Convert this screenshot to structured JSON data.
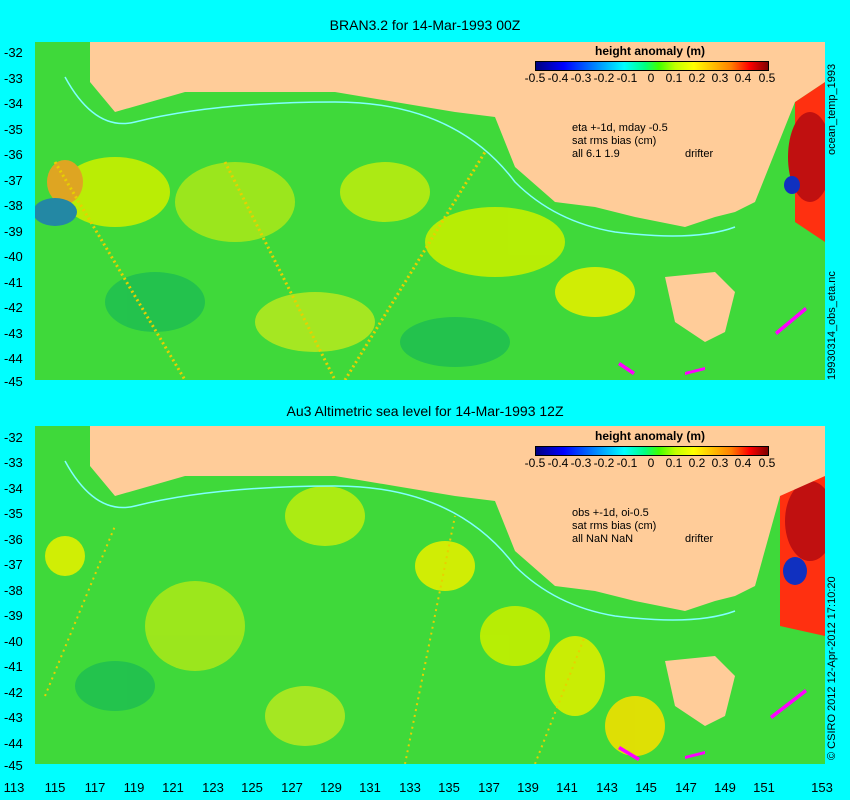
{
  "panels": [
    {
      "title": "BRAN3.2 for 14-Mar-1993 00Z",
      "colorbar_title": "height anomaly (m)",
      "note_lines": [
        "eta +-1d, mday -0.5",
        "sat rms bias (cm)",
        "all 6.1 1.9"
      ],
      "drifter_label": "drifter",
      "side_label": "ocean_temp_1993",
      "side_label_lower": "19930314_obs_eta.nc"
    },
    {
      "title": "Au3 Altimetric sea level  for 14-Mar-1993 12Z",
      "colorbar_title": "height anomaly (m)",
      "note_lines": [
        "obs +-1d, oi-0.5",
        "sat rms bias (cm)",
        "all NaN NaN"
      ],
      "drifter_label": "drifter",
      "side_label": "© CSIRO 2012  12-Apr-2012 17:10:20"
    }
  ],
  "colorbar_ticks": [
    "-0.5",
    "-0.4",
    "-0.3",
    "-0.2",
    "-0.1",
    "0",
    "0.1",
    "0.2",
    "0.3",
    "0.4",
    "0.5"
  ],
  "latitude_ticks": [
    "-32",
    "-33",
    "-34",
    "-35",
    "-36",
    "-37",
    "-38",
    "-39",
    "-40",
    "-41",
    "-42",
    "-43",
    "-44",
    "-45"
  ],
  "longitude_ticks": [
    "113",
    "115",
    "117",
    "119",
    "121",
    "123",
    "125",
    "127",
    "129",
    "131",
    "133",
    "135",
    "137",
    "139",
    "141",
    "143",
    "145",
    "147",
    "149",
    "151",
    "153"
  ],
  "colors": {
    "land": "#ffcc99",
    "ocean_base": "#44dd22",
    "background": "#00ffff",
    "drifter": "#ff00ff"
  }
}
